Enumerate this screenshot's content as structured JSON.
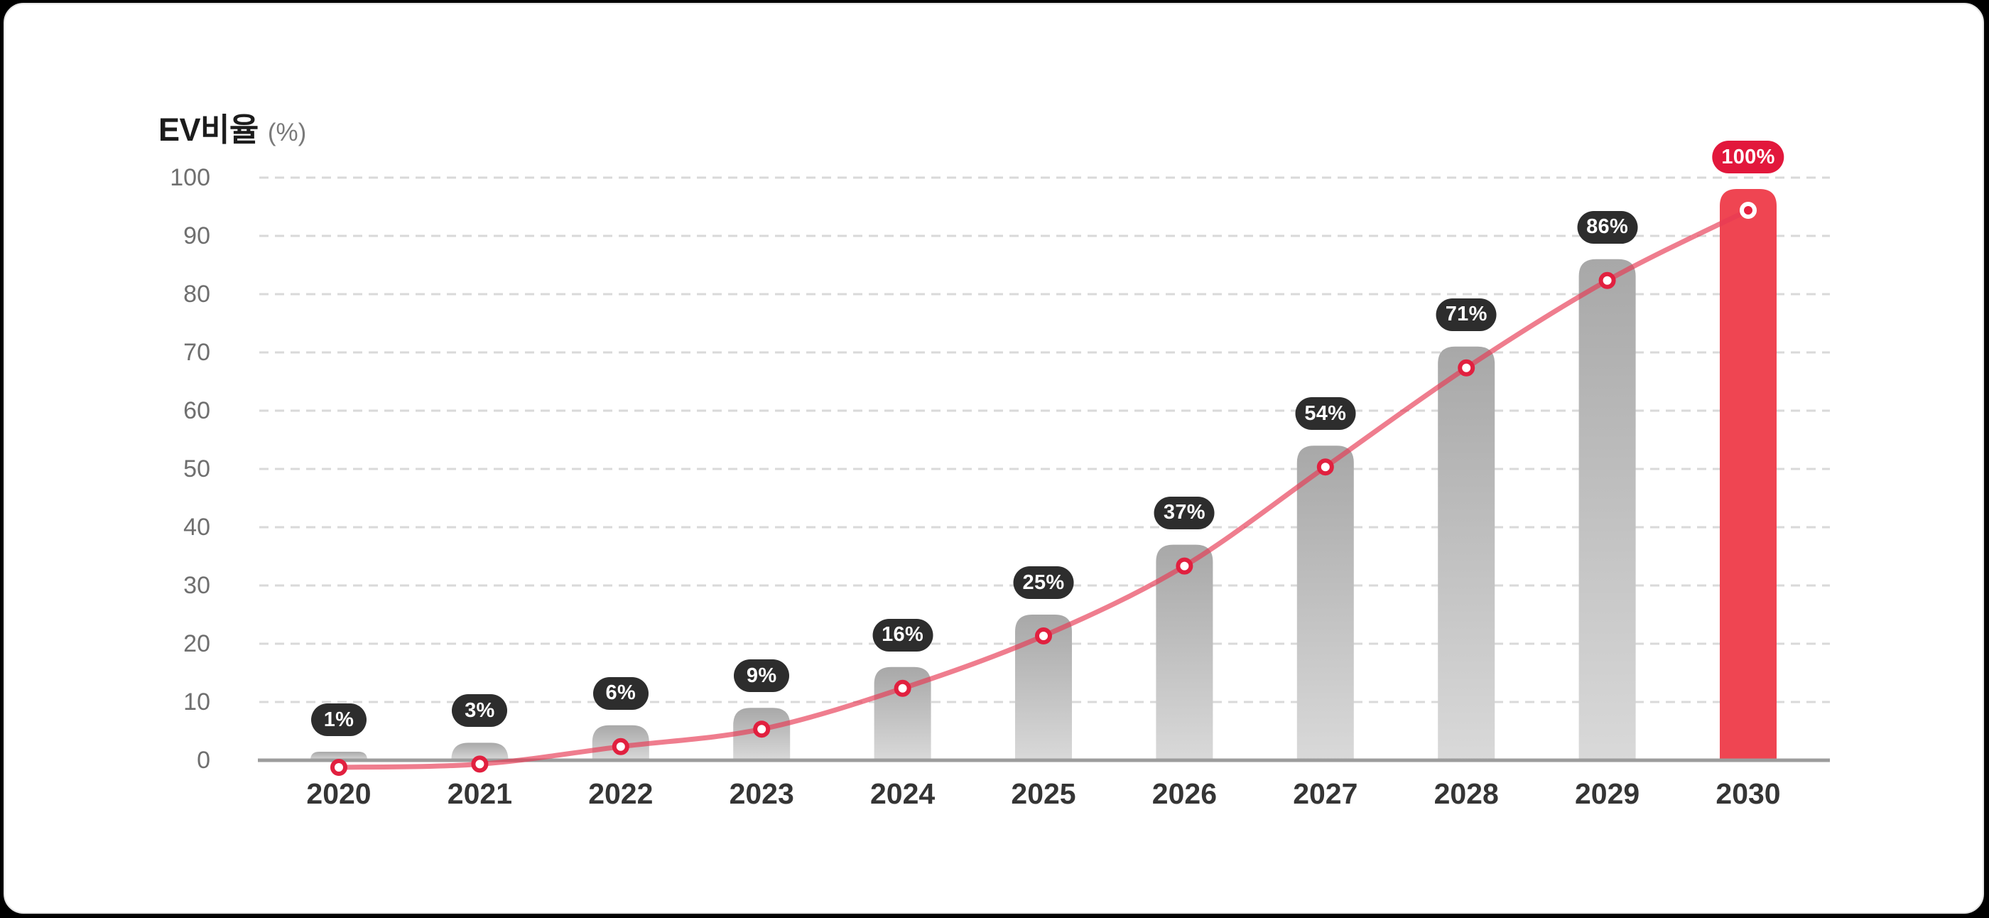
{
  "page": {
    "background_color": "#000000",
    "card_color": "#FFFFFF"
  },
  "chart": {
    "title": "EV비율",
    "unit": "(%)"
  },
  "chart_data": {
    "type": "bar",
    "overlay": "line-with-markers",
    "title": "EV비율 (%)",
    "ylabel": "EV비율 (%)",
    "xlabel": "",
    "categories": [
      "2020",
      "2021",
      "2022",
      "2023",
      "2024",
      "2025",
      "2026",
      "2027",
      "2028",
      "2029",
      "2030"
    ],
    "values": [
      1,
      3,
      6,
      9,
      16,
      25,
      37,
      54,
      71,
      86,
      100
    ],
    "line_values": [
      1,
      3,
      6,
      9,
      16,
      25,
      37,
      54,
      71,
      86,
      100
    ],
    "data_labels": [
      "1%",
      "3%",
      "6%",
      "9%",
      "16%",
      "25%",
      "37%",
      "54%",
      "71%",
      "86%",
      "100%"
    ],
    "ylim": [
      0,
      100
    ],
    "yticks": [
      0,
      10,
      20,
      30,
      40,
      50,
      60,
      70,
      80,
      90,
      100
    ],
    "grid": "horizontal-dashed",
    "legend": "none",
    "highlight": {
      "index": 10,
      "category": "2030",
      "label": "100%"
    },
    "colors": {
      "bar_gradient_top": "#A8A8A8",
      "bar_gradient_bottom": "#D9D9D9",
      "highlight_bar": "#EF4552",
      "badge_dark": "#2D2D2D",
      "badge_highlight": "#E2183C",
      "badge_text": "#FFFFFF",
      "line": "#E73953",
      "marker_ring": "#E1203F",
      "marker_fill_highlight": "#E6203F",
      "grid": "#D9D9D9",
      "axis": "#9C9C9C",
      "title": "#1C1C1C",
      "unit": "#7A7A7A",
      "x_labels": "#353535",
      "y_labels": "#6F6F6F"
    }
  }
}
